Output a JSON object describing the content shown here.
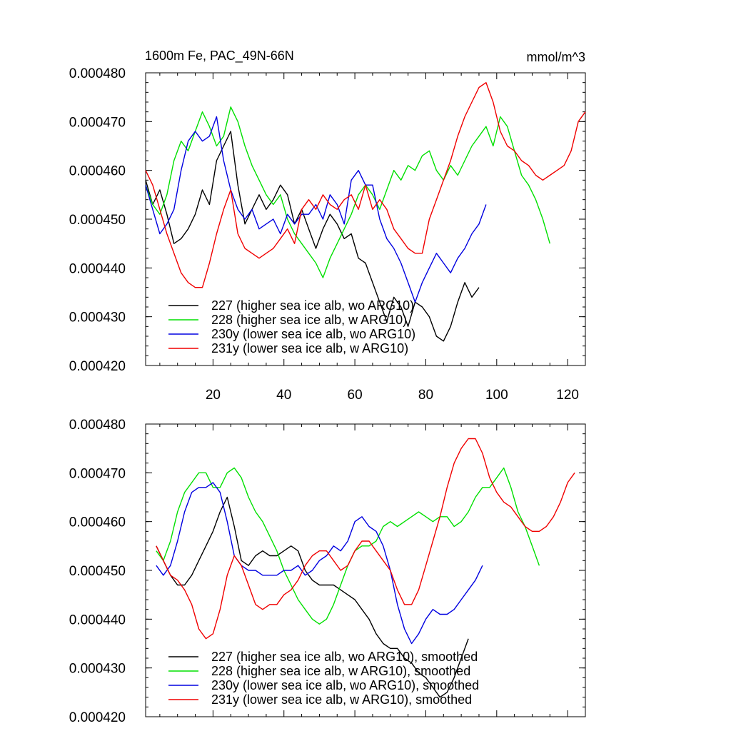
{
  "figure": {
    "title_left": "1600m Fe, PAC_49N-66N",
    "title_right": "mmol/m^3"
  },
  "chart_data": [
    {
      "type": "line",
      "title": "1600m Fe, PAC_49N-66N",
      "units": "mmol/m^3",
      "xlim": [
        1,
        125
      ],
      "ylim": [
        0.00042,
        0.00048
      ],
      "x_ticks": [
        20,
        40,
        60,
        80,
        100,
        120
      ],
      "x_tick_labels": [
        "20",
        "40",
        "60",
        "80",
        "100",
        "120"
      ],
      "y_ticks": [
        0.00042,
        0.00043,
        0.00044,
        0.00045,
        0.00046,
        0.00047,
        0.00048
      ],
      "y_tick_labels": [
        "0.000420",
        "0.000430",
        "0.000440",
        "0.000450",
        "0.000460",
        "0.000470",
        "0.000480"
      ],
      "grid": false,
      "legend_position": "bottom-left",
      "series": [
        {
          "name": "227 (higher sea ice alb, wo ARG10)",
          "color": "#000000",
          "x": [
            1,
            3,
            5,
            7,
            9,
            11,
            13,
            15,
            17,
            19,
            21,
            23,
            25,
            27,
            29,
            31,
            33,
            35,
            37,
            39,
            41,
            43,
            45,
            47,
            49,
            51,
            53,
            55,
            57,
            59,
            61,
            63,
            65,
            67,
            69,
            71,
            73,
            75,
            77,
            79,
            81,
            83,
            85,
            87,
            89,
            91,
            93,
            95
          ],
          "y": [
            0.000458,
            0.000453,
            0.000456,
            0.000451,
            0.000445,
            0.000446,
            0.000448,
            0.000451,
            0.000456,
            0.000453,
            0.000462,
            0.000465,
            0.000468,
            0.000457,
            0.000449,
            0.000452,
            0.000455,
            0.000452,
            0.000454,
            0.000457,
            0.000455,
            0.000449,
            0.000452,
            0.000448,
            0.000444,
            0.000448,
            0.000451,
            0.000449,
            0.000446,
            0.000447,
            0.000442,
            0.000441,
            0.000437,
            0.000433,
            0.000429,
            0.000434,
            0.000432,
            0.000428,
            0.000433,
            0.000432,
            0.00043,
            0.000426,
            0.000425,
            0.000428,
            0.000433,
            0.000437,
            0.000434,
            0.000436
          ]
        },
        {
          "name": "228 (higher sea ice alb, w ARG10)",
          "color": "#00e000",
          "x": [
            1,
            3,
            5,
            7,
            9,
            11,
            13,
            15,
            17,
            19,
            21,
            23,
            25,
            27,
            29,
            31,
            33,
            35,
            37,
            39,
            41,
            43,
            45,
            47,
            49,
            51,
            53,
            55,
            57,
            59,
            61,
            63,
            65,
            67,
            69,
            71,
            73,
            75,
            77,
            79,
            81,
            83,
            85,
            87,
            89,
            91,
            93,
            95,
            97,
            99,
            101,
            103,
            105,
            107,
            109,
            111,
            113,
            115
          ],
          "y": [
            0.000457,
            0.000453,
            0.000451,
            0.000455,
            0.000462,
            0.000466,
            0.000464,
            0.000468,
            0.000472,
            0.000469,
            0.000465,
            0.000467,
            0.000473,
            0.00047,
            0.000465,
            0.000461,
            0.000458,
            0.000455,
            0.000453,
            0.000455,
            0.00045,
            0.000447,
            0.000445,
            0.000443,
            0.000441,
            0.000438,
            0.000442,
            0.000445,
            0.000448,
            0.000451,
            0.000455,
            0.000457,
            0.000455,
            0.000452,
            0.000456,
            0.00046,
            0.000458,
            0.000461,
            0.00046,
            0.000463,
            0.000464,
            0.00046,
            0.000458,
            0.000461,
            0.000459,
            0.000462,
            0.000465,
            0.000467,
            0.000469,
            0.000465,
            0.000471,
            0.000469,
            0.000464,
            0.000459,
            0.000457,
            0.000454,
            0.00045,
            0.000445
          ]
        },
        {
          "name": "230y (lower sea ice alb, wo ARG10)",
          "color": "#0000e0",
          "x": [
            1,
            3,
            5,
            7,
            9,
            11,
            13,
            15,
            17,
            19,
            21,
            23,
            25,
            27,
            29,
            31,
            33,
            35,
            37,
            39,
            41,
            43,
            45,
            47,
            49,
            51,
            53,
            55,
            57,
            59,
            61,
            63,
            65,
            67,
            69,
            71,
            73,
            75,
            77,
            79,
            81,
            83,
            85,
            87,
            89,
            91,
            93,
            95,
            97
          ],
          "y": [
            0.000457,
            0.000452,
            0.000447,
            0.000449,
            0.000452,
            0.00046,
            0.000466,
            0.000468,
            0.000466,
            0.000467,
            0.000471,
            0.000462,
            0.000456,
            0.000452,
            0.00045,
            0.000452,
            0.000448,
            0.000449,
            0.00045,
            0.000447,
            0.000451,
            0.000449,
            0.000451,
            0.000451,
            0.000453,
            0.00045,
            0.000455,
            0.000453,
            0.000449,
            0.000458,
            0.00046,
            0.000457,
            0.000457,
            0.00045,
            0.000446,
            0.000444,
            0.000441,
            0.000437,
            0.000433,
            0.000437,
            0.00044,
            0.000443,
            0.000441,
            0.000439,
            0.000442,
            0.000444,
            0.000447,
            0.000449,
            0.000453
          ]
        },
        {
          "name": "231y (lower sea ice alb, w ARG10)",
          "color": "#f00000",
          "x": [
            1,
            3,
            5,
            7,
            9,
            11,
            13,
            15,
            17,
            19,
            21,
            23,
            25,
            27,
            29,
            31,
            33,
            35,
            37,
            39,
            41,
            43,
            45,
            47,
            49,
            51,
            53,
            55,
            57,
            59,
            61,
            63,
            65,
            67,
            69,
            71,
            73,
            75,
            77,
            79,
            81,
            83,
            85,
            87,
            89,
            91,
            93,
            95,
            97,
            99,
            101,
            103,
            105,
            107,
            109,
            111,
            113,
            115,
            117,
            119,
            121,
            123,
            125
          ],
          "y": [
            0.00046,
            0.000457,
            0.000452,
            0.000447,
            0.000443,
            0.000439,
            0.000437,
            0.000436,
            0.000436,
            0.000441,
            0.000447,
            0.000452,
            0.000456,
            0.000447,
            0.000444,
            0.000443,
            0.000442,
            0.000443,
            0.000444,
            0.000446,
            0.000448,
            0.000445,
            0.000452,
            0.000454,
            0.000452,
            0.000455,
            0.000453,
            0.000452,
            0.000454,
            0.000455,
            0.000452,
            0.000457,
            0.000452,
            0.000454,
            0.000452,
            0.000448,
            0.000446,
            0.000444,
            0.000443,
            0.000443,
            0.00045,
            0.000454,
            0.000458,
            0.000462,
            0.000467,
            0.000471,
            0.000474,
            0.000477,
            0.000478,
            0.000474,
            0.000468,
            0.000465,
            0.000464,
            0.000462,
            0.000461,
            0.000459,
            0.000458,
            0.000459,
            0.00046,
            0.000461,
            0.000464,
            0.00047,
            0.000472
          ]
        }
      ]
    },
    {
      "type": "line",
      "xlim": [
        1,
        125
      ],
      "ylim": [
        0.00042,
        0.00048
      ],
      "y_ticks": [
        0.00042,
        0.00043,
        0.00044,
        0.00045,
        0.00046,
        0.00047,
        0.00048
      ],
      "y_tick_labels": [
        "0.000420",
        "0.000430",
        "0.000440",
        "0.000450",
        "0.000460",
        "0.000470",
        "0.000480"
      ],
      "grid": false,
      "legend_position": "bottom-left",
      "series": [
        {
          "name": "227 (higher sea ice alb, wo ARG10), smoothed",
          "color": "#000000",
          "x": [
            4,
            6,
            8,
            10,
            12,
            14,
            16,
            18,
            20,
            22,
            24,
            26,
            28,
            30,
            32,
            34,
            36,
            38,
            40,
            42,
            44,
            46,
            48,
            50,
            52,
            54,
            56,
            58,
            60,
            62,
            64,
            66,
            68,
            70,
            72,
            74,
            76,
            78,
            80,
            82,
            84,
            86,
            88,
            90,
            92
          ],
          "y": [
            0.000455,
            0.000452,
            0.000449,
            0.000447,
            0.000447,
            0.000449,
            0.000452,
            0.000455,
            0.000458,
            0.000462,
            0.000465,
            0.000459,
            0.000452,
            0.000451,
            0.000453,
            0.000454,
            0.000453,
            0.000453,
            0.000454,
            0.000455,
            0.000454,
            0.00045,
            0.000448,
            0.000447,
            0.000447,
            0.000447,
            0.000446,
            0.000445,
            0.000444,
            0.000442,
            0.00044,
            0.000437,
            0.000435,
            0.000434,
            0.000434,
            0.000432,
            0.000431,
            0.000429,
            0.000428,
            0.000426,
            0.000424,
            0.000425,
            0.000428,
            0.000432,
            0.000436
          ]
        },
        {
          "name": "228 (higher sea ice alb, w ARG10), smoothed",
          "color": "#00e000",
          "x": [
            4,
            6,
            8,
            10,
            12,
            14,
            16,
            18,
            20,
            22,
            24,
            26,
            28,
            30,
            32,
            34,
            36,
            38,
            40,
            42,
            44,
            46,
            48,
            50,
            52,
            54,
            56,
            58,
            60,
            62,
            64,
            66,
            68,
            70,
            72,
            74,
            76,
            78,
            80,
            82,
            84,
            86,
            88,
            90,
            92,
            94,
            96,
            98,
            100,
            102,
            104,
            106,
            108,
            110,
            112
          ],
          "y": [
            0.000454,
            0.000452,
            0.000456,
            0.000462,
            0.000466,
            0.000468,
            0.00047,
            0.00047,
            0.000467,
            0.000467,
            0.00047,
            0.000471,
            0.000469,
            0.000465,
            0.000462,
            0.00046,
            0.000457,
            0.000454,
            0.00045,
            0.000447,
            0.000444,
            0.000442,
            0.00044,
            0.000439,
            0.00044,
            0.000443,
            0.000447,
            0.000451,
            0.000454,
            0.000455,
            0.000455,
            0.000456,
            0.000459,
            0.00046,
            0.000459,
            0.00046,
            0.000461,
            0.000462,
            0.000461,
            0.00046,
            0.000461,
            0.000461,
            0.000459,
            0.00046,
            0.000462,
            0.000465,
            0.000467,
            0.000467,
            0.000469,
            0.000471,
            0.000467,
            0.000462,
            0.000459,
            0.000455,
            0.000451
          ]
        },
        {
          "name": "230y (lower sea ice alb, wo ARG10), smoothed",
          "color": "#0000e0",
          "x": [
            4,
            6,
            8,
            10,
            12,
            14,
            16,
            18,
            20,
            22,
            24,
            26,
            28,
            30,
            32,
            34,
            36,
            38,
            40,
            42,
            44,
            46,
            48,
            50,
            52,
            54,
            56,
            58,
            60,
            62,
            64,
            66,
            68,
            70,
            72,
            74,
            76,
            78,
            80,
            82,
            84,
            86,
            88,
            90,
            92,
            94,
            96
          ],
          "y": [
            0.000451,
            0.000449,
            0.000451,
            0.000456,
            0.000462,
            0.000466,
            0.000467,
            0.000467,
            0.000468,
            0.000466,
            0.00046,
            0.000453,
            0.000451,
            0.00045,
            0.00045,
            0.000449,
            0.000449,
            0.000449,
            0.00045,
            0.00045,
            0.000451,
            0.000449,
            0.00045,
            0.000452,
            0.000453,
            0.000455,
            0.000454,
            0.000456,
            0.00046,
            0.000461,
            0.000459,
            0.000458,
            0.000455,
            0.00045,
            0.000443,
            0.000438,
            0.000435,
            0.000437,
            0.00044,
            0.000442,
            0.000441,
            0.000441,
            0.000442,
            0.000444,
            0.000446,
            0.000448,
            0.000451
          ]
        },
        {
          "name": "231y (lower sea ice alb, w ARG10), smoothed",
          "color": "#f00000",
          "x": [
            4,
            6,
            8,
            10,
            12,
            14,
            16,
            18,
            20,
            22,
            24,
            26,
            28,
            30,
            32,
            34,
            36,
            38,
            40,
            42,
            44,
            46,
            48,
            50,
            52,
            54,
            56,
            58,
            60,
            62,
            64,
            66,
            68,
            70,
            72,
            74,
            76,
            78,
            80,
            82,
            84,
            86,
            88,
            90,
            92,
            94,
            96,
            98,
            100,
            102,
            104,
            106,
            108,
            110,
            112,
            114,
            116,
            118,
            120,
            122
          ],
          "y": [
            0.000455,
            0.000452,
            0.000449,
            0.000448,
            0.000446,
            0.000443,
            0.000438,
            0.000436,
            0.000437,
            0.000442,
            0.000449,
            0.000453,
            0.000451,
            0.000447,
            0.000443,
            0.000442,
            0.000443,
            0.000443,
            0.000445,
            0.000446,
            0.000448,
            0.000451,
            0.000453,
            0.000454,
            0.000454,
            0.000452,
            0.00045,
            0.000451,
            0.000454,
            0.000456,
            0.000456,
            0.000454,
            0.000452,
            0.00045,
            0.000446,
            0.000443,
            0.000443,
            0.000446,
            0.000451,
            0.000456,
            0.000461,
            0.000467,
            0.000472,
            0.000475,
            0.000477,
            0.000477,
            0.000474,
            0.000469,
            0.000466,
            0.000464,
            0.000463,
            0.000461,
            0.000459,
            0.000458,
            0.000458,
            0.000459,
            0.000461,
            0.000464,
            0.000468,
            0.00047
          ]
        }
      ]
    }
  ]
}
